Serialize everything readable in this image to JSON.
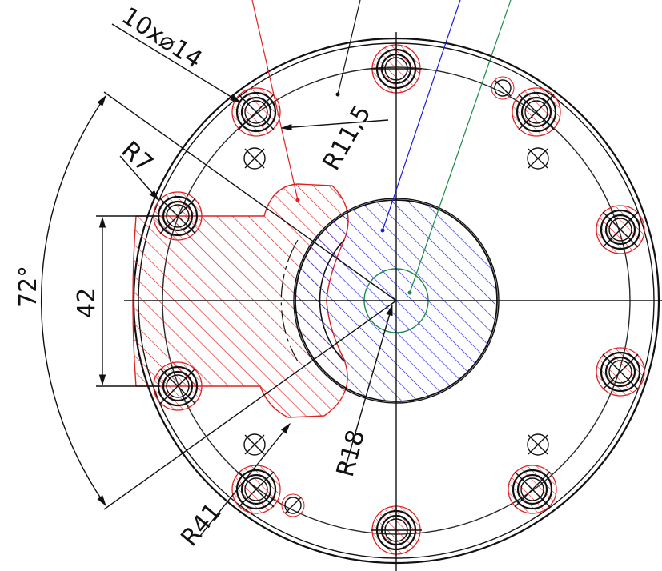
{
  "drawing": {
    "colors": {
      "line": "#111111",
      "red": "#e02020",
      "blue": "#1a1ae6",
      "green": "#1a8a4a",
      "background": "#ffffff"
    },
    "dimensions": {
      "hole_callout": "10x⌀14",
      "r_small": "R7",
      "r_bolt": "R11,5",
      "width": "42",
      "angle": "72°",
      "r_center": "R18",
      "r_outer_cut": "R41"
    }
  }
}
